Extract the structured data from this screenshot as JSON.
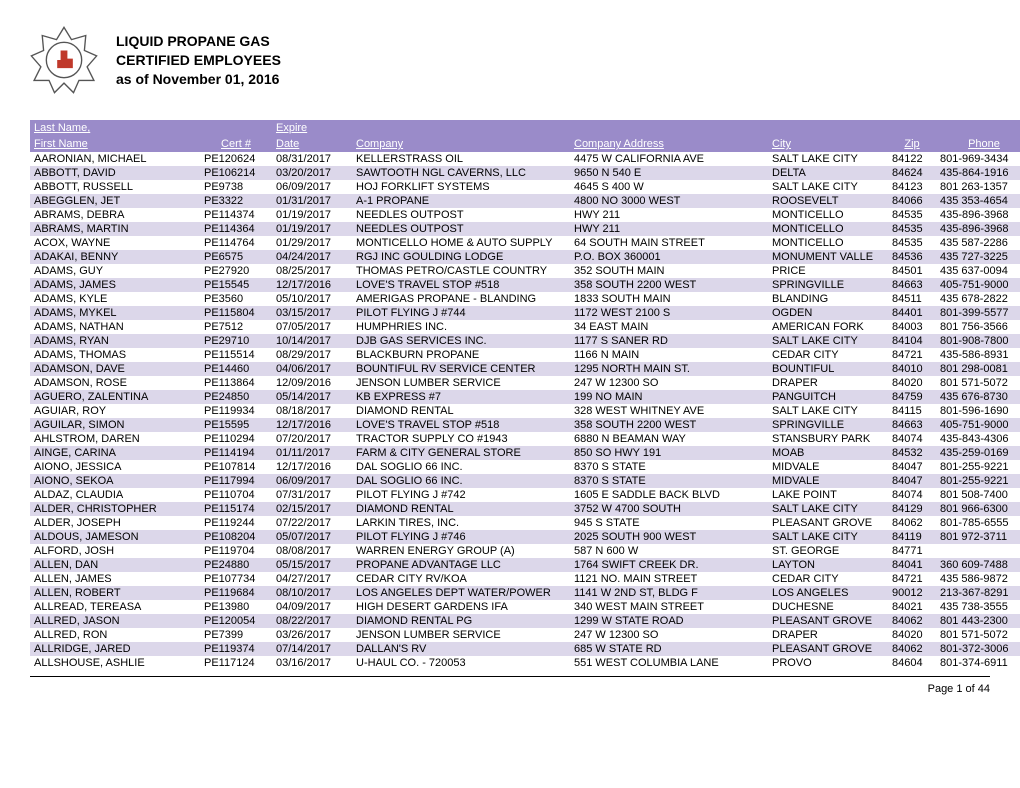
{
  "header": {
    "title_line1": "LIQUID PROPANE GAS",
    "title_line2": "CERTIFIED EMPLOYEES",
    "title_line3": "as of November 01, 2016"
  },
  "table": {
    "header_row1": {
      "name": "Last Name,",
      "expire": "Expire"
    },
    "header_row2": {
      "name": "First Name",
      "cert": "Cert #",
      "date": "Date",
      "company": "Company",
      "address": "Company Address",
      "city": "City",
      "zip": "Zip",
      "phone": "Phone"
    },
    "row_alt_color": "#dcd7ea",
    "header_bg": "#9a8bc9",
    "header_fg": "#ffffff",
    "rows": [
      {
        "name": "AARONIAN, MICHAEL",
        "cert": "PE120624",
        "date": "08/31/2017",
        "co": "KELLERSTRASS OIL",
        "addr": "4475 W CALIFORNIA AVE",
        "city": "SALT LAKE CITY",
        "zip": "84122",
        "ph": "801-969-3434"
      },
      {
        "name": "ABBOTT, DAVID",
        "cert": "PE106214",
        "date": "03/20/2017",
        "co": "SAWTOOTH NGL CAVERNS, LLC",
        "addr": "9650 N 540 E",
        "city": "DELTA",
        "zip": "84624",
        "ph": "435-864-1916"
      },
      {
        "name": "ABBOTT, RUSSELL",
        "cert": "PE9738",
        "date": "06/09/2017",
        "co": "HOJ FORKLIFT SYSTEMS",
        "addr": "4645 S 400 W",
        "city": "SALT LAKE CITY",
        "zip": "84123",
        "ph": "801 263-1357"
      },
      {
        "name": "ABEGGLEN, JET",
        "cert": "PE3322",
        "date": "01/31/2017",
        "co": "A-1 PROPANE",
        "addr": "4800 NO 3000 WEST",
        "city": "ROOSEVELT",
        "zip": "84066",
        "ph": "435 353-4654"
      },
      {
        "name": "ABRAMS, DEBRA",
        "cert": "PE114374",
        "date": "01/19/2017",
        "co": "NEEDLES OUTPOST",
        "addr": "HWY 211",
        "city": "MONTICELLO",
        "zip": "84535",
        "ph": "435-896-3968"
      },
      {
        "name": "ABRAMS, MARTIN",
        "cert": "PE114364",
        "date": "01/19/2017",
        "co": "NEEDLES OUTPOST",
        "addr": "HWY 211",
        "city": "MONTICELLO",
        "zip": "84535",
        "ph": "435-896-3968"
      },
      {
        "name": "ACOX, WAYNE",
        "cert": "PE114764",
        "date": "01/29/2017",
        "co": "MONTICELLO HOME & AUTO SUPPLY",
        "addr": "64 SOUTH MAIN STREET",
        "city": "MONTICELLO",
        "zip": "84535",
        "ph": "435 587-2286"
      },
      {
        "name": "ADAKAI, BENNY",
        "cert": "PE6575",
        "date": "04/24/2017",
        "co": "RGJ INC GOULDING LODGE",
        "addr": "P.O. BOX 360001",
        "city": "MONUMENT VALLE",
        "zip": "84536",
        "ph": "435 727-3225"
      },
      {
        "name": "ADAMS, GUY",
        "cert": "PE27920",
        "date": "08/25/2017",
        "co": "THOMAS PETRO/CASTLE COUNTRY",
        "addr": "352 SOUTH MAIN",
        "city": "PRICE",
        "zip": "84501",
        "ph": "435 637-0094"
      },
      {
        "name": "ADAMS, JAMES",
        "cert": "PE15545",
        "date": "12/17/2016",
        "co": "LOVE'S TRAVEL STOP #518",
        "addr": "358 SOUTH 2200 WEST",
        "city": "SPRINGVILLE",
        "zip": "84663",
        "ph": "405-751-9000"
      },
      {
        "name": "ADAMS, KYLE",
        "cert": "PE3560",
        "date": "05/10/2017",
        "co": "AMERIGAS PROPANE - BLANDING",
        "addr": "1833 SOUTH MAIN",
        "city": "BLANDING",
        "zip": "84511",
        "ph": "435 678-2822"
      },
      {
        "name": "ADAMS, MYKEL",
        "cert": "PE115804",
        "date": "03/15/2017",
        "co": "PILOT FLYING J #744",
        "addr": "1172 WEST 2100 S",
        "city": "OGDEN",
        "zip": "84401",
        "ph": "801-399-5577"
      },
      {
        "name": "ADAMS, NATHAN",
        "cert": "PE7512",
        "date": "07/05/2017",
        "co": "HUMPHRIES INC.",
        "addr": "34 EAST MAIN",
        "city": "AMERICAN FORK",
        "zip": "84003",
        "ph": "801 756-3566"
      },
      {
        "name": "ADAMS, RYAN",
        "cert": "PE29710",
        "date": "10/14/2017",
        "co": "DJB GAS SERVICES INC.",
        "addr": "1177 S SANER RD",
        "city": "SALT LAKE CITY",
        "zip": "84104",
        "ph": "801-908-7800"
      },
      {
        "name": "ADAMS, THOMAS",
        "cert": "PE115514",
        "date": "08/29/2017",
        "co": "BLACKBURN PROPANE",
        "addr": "1166 N MAIN",
        "city": "CEDAR CITY",
        "zip": "84721",
        "ph": "435-586-8931"
      },
      {
        "name": "ADAMSON, DAVE",
        "cert": "PE14460",
        "date": "04/06/2017",
        "co": "BOUNTIFUL RV SERVICE CENTER",
        "addr": "1295 NORTH MAIN ST.",
        "city": "BOUNTIFUL",
        "zip": "84010",
        "ph": "801 298-0081"
      },
      {
        "name": "ADAMSON, ROSE",
        "cert": "PE113864",
        "date": "12/09/2016",
        "co": "JENSON LUMBER SERVICE",
        "addr": "247 W 12300 SO",
        "city": "DRAPER",
        "zip": "84020",
        "ph": "801 571-5072"
      },
      {
        "name": "AGUERO, ZALENTINA",
        "cert": "PE24850",
        "date": "05/14/2017",
        "co": "KB EXPRESS #7",
        "addr": "199 NO MAIN",
        "city": "PANGUITCH",
        "zip": "84759",
        "ph": "435 676-8730"
      },
      {
        "name": "AGUIAR, ROY",
        "cert": "PE119934",
        "date": "08/18/2017",
        "co": "DIAMOND RENTAL",
        "addr": "328 WEST WHITNEY AVE",
        "city": "SALT LAKE CITY",
        "zip": "84115",
        "ph": "801-596-1690"
      },
      {
        "name": "AGUILAR, SIMON",
        "cert": "PE15595",
        "date": "12/17/2016",
        "co": "LOVE'S TRAVEL STOP #518",
        "addr": "358 SOUTH 2200 WEST",
        "city": "SPRINGVILLE",
        "zip": "84663",
        "ph": "405-751-9000"
      },
      {
        "name": "AHLSTROM, DAREN",
        "cert": "PE110294",
        "date": "07/20/2017",
        "co": "TRACTOR SUPPLY CO #1943",
        "addr": "6880 N BEAMAN WAY",
        "city": "STANSBURY PARK",
        "zip": "84074",
        "ph": "435-843-4306"
      },
      {
        "name": "AINGE, CARINA",
        "cert": "PE114194",
        "date": "01/11/2017",
        "co": "FARM & CITY GENERAL STORE",
        "addr": "850 SO HWY 191",
        "city": "MOAB",
        "zip": "84532",
        "ph": "435-259-0169"
      },
      {
        "name": "AIONO, JESSICA",
        "cert": "PE107814",
        "date": "12/17/2016",
        "co": "DAL SOGLIO 66 INC.",
        "addr": "8370 S STATE",
        "city": "MIDVALE",
        "zip": "84047",
        "ph": "801-255-9221"
      },
      {
        "name": "AIONO, SEKOA",
        "cert": "PE117994",
        "date": "06/09/2017",
        "co": "DAL SOGLIO 66 INC.",
        "addr": "8370 S STATE",
        "city": "MIDVALE",
        "zip": "84047",
        "ph": "801-255-9221"
      },
      {
        "name": "ALDAZ, CLAUDIA",
        "cert": "PE110704",
        "date": "07/31/2017",
        "co": "PILOT FLYING J #742",
        "addr": "1605 E SADDLE BACK BLVD",
        "city": "LAKE POINT",
        "zip": "84074",
        "ph": "801 508-7400"
      },
      {
        "name": "ALDER, CHRISTOPHER",
        "cert": "PE115174",
        "date": "02/15/2017",
        "co": "DIAMOND RENTAL",
        "addr": "3752 W 4700 SOUTH",
        "city": "SALT LAKE CITY",
        "zip": "84129",
        "ph": "801 966-6300"
      },
      {
        "name": "ALDER, JOSEPH",
        "cert": "PE119244",
        "date": "07/22/2017",
        "co": "LARKIN TIRES, INC.",
        "addr": "945 S STATE",
        "city": "PLEASANT GROVE",
        "zip": "84062",
        "ph": "801-785-6555"
      },
      {
        "name": "ALDOUS, JAMESON",
        "cert": "PE108204",
        "date": "05/07/2017",
        "co": "PILOT FLYING J #746",
        "addr": "2025 SOUTH 900 WEST",
        "city": "SALT LAKE CITY",
        "zip": "84119",
        "ph": "801 972-3711"
      },
      {
        "name": "ALFORD, JOSH",
        "cert": "PE119704",
        "date": "08/08/2017",
        "co": "WARREN ENERGY GROUP (A)",
        "addr": "587 N 600 W",
        "city": "ST. GEORGE",
        "zip": "84771",
        "ph": ""
      },
      {
        "name": "ALLEN, DAN",
        "cert": "PE24880",
        "date": "05/15/2017",
        "co": "PROPANE ADVANTAGE LLC",
        "addr": "1764 SWIFT CREEK DR.",
        "city": "LAYTON",
        "zip": "84041",
        "ph": "360 609-7488"
      },
      {
        "name": "ALLEN, JAMES",
        "cert": "PE107734",
        "date": "04/27/2017",
        "co": "CEDAR CITY RV/KOA",
        "addr": "1121 NO. MAIN STREET",
        "city": "CEDAR CITY",
        "zip": "84721",
        "ph": "435 586-9872"
      },
      {
        "name": "ALLEN, ROBERT",
        "cert": "PE119684",
        "date": "08/10/2017",
        "co": "LOS ANGELES DEPT WATER/POWER",
        "addr": "1141 W 2ND ST, BLDG F",
        "city": "LOS ANGELES",
        "zip": "90012",
        "ph": "213-367-8291"
      },
      {
        "name": "ALLREAD, TEREASA",
        "cert": "PE13980",
        "date": "04/09/2017",
        "co": "HIGH DESERT GARDENS IFA",
        "addr": "340 WEST MAIN STREET",
        "city": "DUCHESNE",
        "zip": "84021",
        "ph": "435 738-3555"
      },
      {
        "name": "ALLRED, JASON",
        "cert": "PE120054",
        "date": "08/22/2017",
        "co": "DIAMOND RENTAL PG",
        "addr": "1299 W STATE ROAD",
        "city": "PLEASANT GROVE",
        "zip": "84062",
        "ph": "801 443-2300"
      },
      {
        "name": "ALLRED, RON",
        "cert": "PE7399",
        "date": "03/26/2017",
        "co": "JENSON LUMBER SERVICE",
        "addr": "247 W 12300 SO",
        "city": "DRAPER",
        "zip": "84020",
        "ph": "801 571-5072"
      },
      {
        "name": "ALLRIDGE, JARED",
        "cert": "PE119374",
        "date": "07/14/2017",
        "co": "DALLAN'S RV",
        "addr": "685 W STATE RD",
        "city": "PLEASANT GROVE",
        "zip": "84062",
        "ph": "801-372-3006"
      },
      {
        "name": "ALLSHOUSE, ASHLIE",
        "cert": "PE117124",
        "date": "03/16/2017",
        "co": "U-HAUL CO. - 720053",
        "addr": "551 WEST COLUMBIA LANE",
        "city": "PROVO",
        "zip": "84604",
        "ph": "801-374-6911"
      }
    ]
  },
  "footer": {
    "page": "Page 1 of 44"
  }
}
